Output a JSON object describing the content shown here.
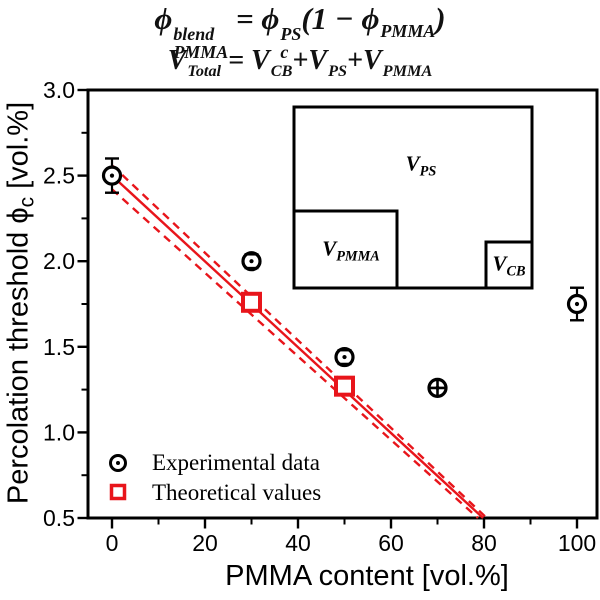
{
  "equations": {
    "line1": [
      {
        "base": "ϕ",
        "sup": "blend",
        "sub": "PMMA"
      },
      {
        "base": " = "
      },
      {
        "base": "ϕ",
        "sup": "PS",
        "sub": "c"
      },
      {
        "base": "(1 − "
      },
      {
        "base": "ϕ",
        "sub": "PMMA"
      },
      {
        "base": ")"
      }
    ],
    "line2": [
      {
        "base": "V",
        "sub": "Total"
      },
      {
        "base": " = "
      },
      {
        "base": "V",
        "sub": "CB"
      },
      {
        "base": "+"
      },
      {
        "base": "V",
        "sub": "PS"
      },
      {
        "base": "+"
      },
      {
        "base": "V",
        "sub": "PMMA"
      }
    ]
  },
  "axes": {
    "x_title": "PMMA content [vol.%]",
    "y_title_pre": "Percolation threshold ",
    "y_title_phi": "ϕ",
    "y_title_sub": "c",
    "y_title_post": " [vol.%]"
  },
  "legend": {
    "experimental": "Experimental data",
    "theoretical": "Theoretical values"
  },
  "inset": {
    "ps_base": "V",
    "ps_sub": "PS",
    "pmma_base": "V",
    "pmma_sub": "PMMA",
    "cb_base": "V",
    "cb_sub": "CB"
  },
  "colors": {
    "accent_red": "#e8151b",
    "black": "#000000"
  },
  "chart_data": {
    "type": "scatter",
    "xlabel": "PMMA content [vol.%]",
    "ylabel": "Percolation threshold ϕc [vol.%]",
    "xlim": [
      -5.2,
      104.3
    ],
    "ylim": [
      0.5,
      3.0
    ],
    "xticks": [
      0,
      20,
      40,
      60,
      80,
      100
    ],
    "xminor": [
      10,
      30,
      50,
      70,
      90
    ],
    "yticks": [
      {
        "v": 3.0,
        "label": "3.0"
      },
      {
        "v": 2.5,
        "label": "2.5"
      },
      {
        "v": 2.0,
        "label": "2.0"
      },
      {
        "v": 1.5,
        "label": "1.5"
      },
      {
        "v": 1.0,
        "label": "1.0"
      },
      {
        "v": 0.5,
        "label": "0.5"
      }
    ],
    "yminor": [
      2.75,
      2.25,
      1.75,
      1.25,
      0.75
    ],
    "grid": false,
    "legend_position": "lower-left-inside",
    "series": [
      {
        "name": "Experimental data",
        "marker": "open-circle-dot",
        "color": "#000000",
        "x": [
          0,
          30,
          50,
          70,
          100
        ],
        "y": [
          2.5,
          2.0,
          1.44,
          1.26,
          1.75
        ],
        "yerr": [
          0.1,
          0.04,
          0.04,
          0.01,
          0.095
        ]
      },
      {
        "name": "Theoretical values",
        "marker": "open-square",
        "color": "#e8151b",
        "x": [
          30,
          50
        ],
        "y": [
          1.76,
          1.27
        ]
      }
    ],
    "lines": [
      {
        "name": "theory-fit-solid",
        "style": "solid",
        "color": "#e8151b",
        "from": [
          0,
          2.5
        ],
        "to": [
          79.8,
          0.5
        ]
      },
      {
        "name": "upper-confidence-dashed",
        "style": "dashed",
        "color": "#e8151b",
        "from": [
          0,
          2.56
        ],
        "to": [
          80.6,
          0.5
        ]
      },
      {
        "name": "lower-confidence-dashed",
        "style": "dashed",
        "color": "#e8151b",
        "from": [
          0,
          2.42
        ],
        "to": [
          78.7,
          0.5
        ]
      }
    ],
    "inset_diagram": {
      "boxes": [
        "VPS",
        "VPMMA",
        "VCB"
      ],
      "description": "volume schematic: large VPS box containing VPMMA (bottom-left) and VCB (bottom-right)"
    }
  }
}
